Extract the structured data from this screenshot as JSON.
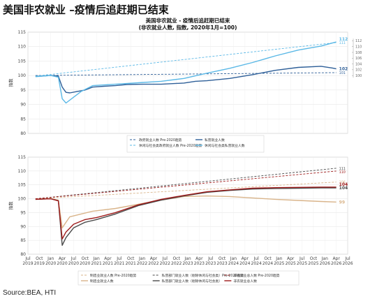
{
  "page_title": "美国非农就业 –疫情后追赶期已结束",
  "source_note": "Source:BEA, HTI",
  "colors": {
    "dark_blue": "#2e5f98",
    "light_blue": "#5ab8e6",
    "tan": "#d9b48a",
    "dark_gray": "#4a4a4a",
    "dark_red": "#9e1a1a"
  },
  "chart_data": [
    {
      "type": "line",
      "title": "美国非农就业 - 疫情后追赶期已结束",
      "subtitle": "(非农就业人数, 指数, 2020年1月=100)",
      "ylabel": "指数",
      "ylim": [
        80,
        115
      ],
      "yticks": [
        80,
        85,
        90,
        95,
        100,
        105,
        110,
        115
      ],
      "xlim": [
        "2019-07",
        "2026-07"
      ],
      "grid": true,
      "legend_position": "bottom",
      "right_axis_ticks": [
        100,
        102,
        104,
        106,
        108,
        110,
        112
      ],
      "series": [
        {
          "name": "政府就业人数 Pre-2020趋势",
          "color": "#2e5f98",
          "dash": true,
          "points": [
            [
              "2019-09",
              100.0
            ],
            [
              "2026-04",
              101.0
            ]
          ],
          "end_label": "101"
        },
        {
          "name": "私营就业人数",
          "color": "#2e5f98",
          "dash": false,
          "points": [
            [
              "2019-09",
              99.7
            ],
            [
              "2020-01",
              100.0
            ],
            [
              "2020-03",
              99.8
            ],
            [
              "2020-04",
              96.0
            ],
            [
              "2020-05",
              94.2
            ],
            [
              "2020-06",
              94.0
            ],
            [
              "2020-08",
              94.5
            ],
            [
              "2020-10",
              95.0
            ],
            [
              "2020-12",
              96.0
            ],
            [
              "2021-03",
              96.3
            ],
            [
              "2021-06",
              96.5
            ],
            [
              "2021-09",
              96.9
            ],
            [
              "2022-01",
              97.0
            ],
            [
              "2022-06",
              97.0
            ],
            [
              "2022-12",
              97.4
            ],
            [
              "2023-03",
              98.0
            ],
            [
              "2023-06",
              98.2
            ],
            [
              "2023-12",
              99.0
            ],
            [
              "2024-06",
              100.3
            ],
            [
              "2024-12",
              101.8
            ],
            [
              "2025-06",
              102.8
            ],
            [
              "2025-12",
              103.2
            ],
            [
              "2026-03",
              102.6
            ],
            [
              "2026-04",
              102.3
            ]
          ],
          "end_label": "102"
        },
        {
          "name": "休闲与社会类政府就业人数 Pre-2020趋势",
          "color": "#5ab8e6",
          "dash": true,
          "points": [
            [
              "2019-09",
              99.8
            ],
            [
              "2026-04",
              111.4
            ]
          ],
          "end_label": "111"
        },
        {
          "name": "休闲与社会类私营就业人数",
          "color": "#5ab8e6",
          "dash": false,
          "points": [
            [
              "2019-09",
              99.6
            ],
            [
              "2020-01",
              100.0
            ],
            [
              "2020-03",
              99.4
            ],
            [
              "2020-04",
              92.0
            ],
            [
              "2020-05",
              90.5
            ],
            [
              "2020-07",
              92.5
            ],
            [
              "2020-09",
              94.5
            ],
            [
              "2020-12",
              96.5
            ],
            [
              "2021-06",
              97.0
            ],
            [
              "2021-12",
              97.5
            ],
            [
              "2022-06",
              98.0
            ],
            [
              "2022-12",
              99.0
            ],
            [
              "2023-06",
              100.8
            ],
            [
              "2023-12",
              102.5
            ],
            [
              "2024-06",
              104.5
            ],
            [
              "2024-12",
              106.8
            ],
            [
              "2025-06",
              108.8
            ],
            [
              "2025-12",
              110.2
            ],
            [
              "2026-04",
              111.6
            ]
          ],
          "end_label": "112"
        }
      ]
    },
    {
      "type": "line",
      "title": "",
      "ylabel": "指数",
      "ylim": [
        80,
        115
      ],
      "yticks": [
        80,
        85,
        90,
        95,
        100,
        105,
        110,
        115
      ],
      "xlim": [
        "2019-07",
        "2026-07"
      ],
      "grid": true,
      "legend_position": "bottom",
      "xtick_labels": [
        [
          "Jul",
          "2019"
        ],
        [
          "Oct",
          "2019"
        ],
        [
          "Jan",
          "2020"
        ],
        [
          "Apr",
          "2020"
        ],
        [
          "Jul",
          "2020"
        ],
        [
          "Oct",
          "2020"
        ],
        [
          "Jan",
          "2021"
        ],
        [
          "Apr",
          "2021"
        ],
        [
          "Jul",
          "2021"
        ],
        [
          "Oct",
          "2021"
        ],
        [
          "Jan",
          "2022"
        ],
        [
          "Apr",
          "2022"
        ],
        [
          "Jul",
          "2022"
        ],
        [
          "Oct",
          "2022"
        ],
        [
          "Jan",
          "2023"
        ],
        [
          "Apr",
          "2023"
        ],
        [
          "Jul",
          "2023"
        ],
        [
          "Oct",
          "2023"
        ],
        [
          "Jan",
          "2024"
        ],
        [
          "Apr",
          "2024"
        ],
        [
          "Jul",
          "2024"
        ],
        [
          "Oct",
          "2024"
        ],
        [
          "Jan",
          "2025"
        ],
        [
          "Apr",
          "2025"
        ],
        [
          "Jul",
          "2025"
        ],
        [
          "Oct",
          "2025"
        ],
        [
          "Jan",
          "2026"
        ],
        [
          "Apr",
          "2026"
        ],
        [
          "Jul",
          "2026"
        ]
      ],
      "series": [
        {
          "name": "制造业就业人数 Pre-2020趋势",
          "color": "#d9b48a",
          "dash": true,
          "points": [
            [
              "2019-09",
              100.0
            ],
            [
              "2026-04",
              106.0
            ]
          ],
          "end_label": "106"
        },
        {
          "name": "制造业就业人数",
          "color": "#d9b48a",
          "dash": false,
          "points": [
            [
              "2019-09",
              99.9
            ],
            [
              "2020-01",
              100.0
            ],
            [
              "2020-03",
              99.5
            ],
            [
              "2020-04",
              89.5
            ],
            [
              "2020-05",
              91.5
            ],
            [
              "2020-06",
              93.5
            ],
            [
              "2020-09",
              94.5
            ],
            [
              "2020-12",
              95.5
            ],
            [
              "2021-06",
              96.5
            ],
            [
              "2021-12",
              98.0
            ],
            [
              "2022-06",
              99.5
            ],
            [
              "2022-12",
              100.8
            ],
            [
              "2023-06",
              101.0
            ],
            [
              "2023-12",
              100.8
            ],
            [
              "2024-06",
              100.3
            ],
            [
              "2024-12",
              99.8
            ],
            [
              "2025-06",
              99.4
            ],
            [
              "2025-12",
              99.0
            ],
            [
              "2026-04",
              98.8
            ]
          ],
          "end_label": "99"
        },
        {
          "name": "私营部门就业人数（剔除休闲与社会类）Pre-2020趋势",
          "color": "#4a4a4a",
          "dash": true,
          "points": [
            [
              "2019-09",
              100.0
            ],
            [
              "2026-04",
              111.0
            ]
          ],
          "end_label": "111"
        },
        {
          "name": "私营部门就业人数（剔除休闲与社会类）",
          "color": "#4a4a4a",
          "dash": false,
          "points": [
            [
              "2019-09",
              99.8
            ],
            [
              "2020-01",
              100.0
            ],
            [
              "2020-03",
              99.3
            ],
            [
              "2020-04",
              83.2
            ],
            [
              "2020-05",
              86.0
            ],
            [
              "2020-07",
              89.5
            ],
            [
              "2020-10",
              91.5
            ],
            [
              "2021-01",
              92.5
            ],
            [
              "2021-06",
              94.5
            ],
            [
              "2021-12",
              97.5
            ],
            [
              "2022-06",
              99.5
            ],
            [
              "2022-12",
              101.0
            ],
            [
              "2023-06",
              102.3
            ],
            [
              "2023-12",
              103.0
            ],
            [
              "2024-06",
              103.5
            ],
            [
              "2024-12",
              103.7
            ],
            [
              "2025-06",
              103.8
            ],
            [
              "2025-12",
              103.9
            ],
            [
              "2026-04",
              103.9
            ]
          ],
          "end_label": "104"
        },
        {
          "name": "非农就业总人数 Pre-2020趋势",
          "color": "#9e1a1a",
          "dash": true,
          "points": [
            [
              "2019-09",
              100.0
            ],
            [
              "2026-04",
              110.0
            ]
          ],
          "end_label": "110"
        },
        {
          "name": "非农就业总人数",
          "color": "#9e1a1a",
          "dash": false,
          "points": [
            [
              "2019-09",
              99.8
            ],
            [
              "2020-01",
              100.0
            ],
            [
              "2020-03",
              99.2
            ],
            [
              "2020-04",
              85.5
            ],
            [
              "2020-05",
              88.0
            ],
            [
              "2020-07",
              90.8
            ],
            [
              "2020-10",
              92.5
            ],
            [
              "2021-01",
              93.2
            ],
            [
              "2021-06",
              95.0
            ],
            [
              "2021-12",
              97.8
            ],
            [
              "2022-06",
              99.8
            ],
            [
              "2022-12",
              101.2
            ],
            [
              "2023-06",
              102.5
            ],
            [
              "2023-12",
              103.2
            ],
            [
              "2024-06",
              103.8
            ],
            [
              "2024-12",
              104.0
            ],
            [
              "2025-06",
              104.1
            ],
            [
              "2025-12",
              104.2
            ],
            [
              "2026-04",
              104.2
            ]
          ],
          "end_label": "104"
        }
      ]
    }
  ]
}
